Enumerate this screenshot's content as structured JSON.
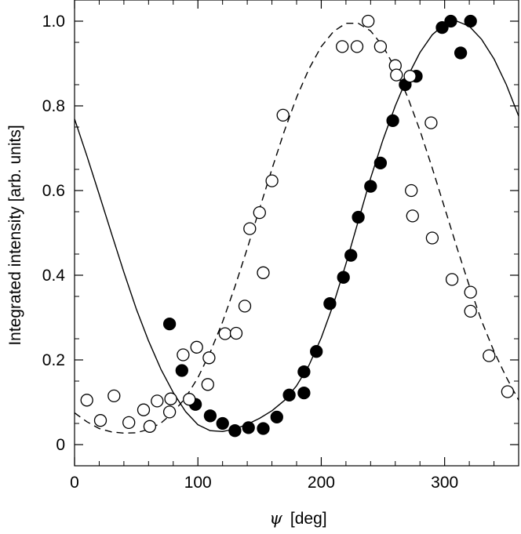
{
  "chart_data": {
    "type": "scatter",
    "title": "",
    "xlabel_symbol": "ψ",
    "xlabel_unit": "[deg]",
    "ylabel": "Integrated intensity [arb. units]",
    "xlim": [
      0,
      360
    ],
    "ylim": [
      -0.05,
      1.05
    ],
    "xticks": [
      0,
      100,
      200,
      300
    ],
    "xtick_labels": [
      "0",
      "100",
      "200",
      "300"
    ],
    "yticks": [
      0,
      0.2,
      0.4,
      0.6,
      0.8,
      1.0
    ],
    "ytick_labels": [
      "0",
      "0.2",
      "0.4",
      "0.6",
      "0.8",
      "1.0"
    ],
    "grid": false,
    "legend": "none",
    "series": [
      {
        "marker": "filled-circle",
        "points": [
          [
            77,
            0.285
          ],
          [
            87,
            0.175
          ],
          [
            98,
            0.095
          ],
          [
            110,
            0.068
          ],
          [
            120,
            0.05
          ],
          [
            130,
            0.033
          ],
          [
            141,
            0.04
          ],
          [
            153,
            0.038
          ],
          [
            164,
            0.065
          ],
          [
            174,
            0.117
          ],
          [
            186,
            0.122
          ],
          [
            186,
            0.172
          ],
          [
            196,
            0.22
          ],
          [
            207,
            0.333
          ],
          [
            218,
            0.395
          ],
          [
            224,
            0.447
          ],
          [
            230,
            0.537
          ],
          [
            240,
            0.61
          ],
          [
            248,
            0.665
          ],
          [
            258,
            0.765
          ],
          [
            268,
            0.85
          ],
          [
            277,
            0.87
          ],
          [
            298,
            0.985
          ],
          [
            305,
            1.0
          ],
          [
            313,
            0.925
          ],
          [
            321,
            1.0
          ]
        ]
      },
      {
        "marker": "open-circle",
        "points": [
          [
            10,
            0.105
          ],
          [
            21,
            0.057
          ],
          [
            32,
            0.115
          ],
          [
            44,
            0.052
          ],
          [
            56,
            0.082
          ],
          [
            61,
            0.043
          ],
          [
            67,
            0.103
          ],
          [
            77,
            0.077
          ],
          [
            78,
            0.108
          ],
          [
            88,
            0.212
          ],
          [
            93,
            0.107
          ],
          [
            99,
            0.23
          ],
          [
            108,
            0.142
          ],
          [
            109,
            0.205
          ],
          [
            122,
            0.262
          ],
          [
            131,
            0.263
          ],
          [
            138,
            0.327
          ],
          [
            142,
            0.51
          ],
          [
            150,
            0.548
          ],
          [
            153,
            0.406
          ],
          [
            160,
            0.623
          ],
          [
            169,
            0.778
          ],
          [
            217,
            0.94
          ],
          [
            229,
            0.94
          ],
          [
            238,
            1.0
          ],
          [
            248,
            0.94
          ],
          [
            260,
            0.895
          ],
          [
            261,
            0.873
          ],
          [
            272,
            0.87
          ],
          [
            273,
            0.6
          ],
          [
            274,
            0.54
          ],
          [
            289,
            0.76
          ],
          [
            290,
            0.488
          ],
          [
            306,
            0.39
          ],
          [
            321,
            0.36
          ],
          [
            321,
            0.315
          ],
          [
            336,
            0.21
          ],
          [
            351,
            0.125
          ]
        ]
      },
      {
        "style": "solid-line",
        "x": [
          0,
          10,
          20,
          30,
          40,
          50,
          60,
          70,
          80,
          90,
          100,
          110,
          120,
          130,
          140,
          150,
          160,
          170,
          180,
          190,
          200,
          210,
          220,
          230,
          240,
          250,
          260,
          270,
          280,
          290,
          300,
          310,
          320,
          330,
          340,
          350,
          360
        ],
        "y": [
          0.769,
          0.682,
          0.591,
          0.498,
          0.407,
          0.321,
          0.245,
          0.178,
          0.123,
          0.078,
          0.047,
          0.033,
          0.031,
          0.037,
          0.048,
          0.062,
          0.08,
          0.104,
          0.139,
          0.187,
          0.252,
          0.333,
          0.427,
          0.528,
          0.629,
          0.72,
          0.8,
          0.869,
          0.926,
          0.968,
          0.993,
          1.0,
          0.988,
          0.957,
          0.911,
          0.85,
          0.776
        ]
      },
      {
        "style": "dashed-line",
        "x": [
          0,
          10,
          20,
          30,
          40,
          50,
          60,
          70,
          80,
          90,
          100,
          110,
          120,
          130,
          140,
          150,
          160,
          170,
          180,
          190,
          200,
          210,
          220,
          230,
          240,
          250,
          260,
          270,
          280,
          290,
          300,
          310,
          320,
          330,
          340,
          350,
          360
        ],
        "y": [
          0.075,
          0.054,
          0.038,
          0.03,
          0.027,
          0.028,
          0.036,
          0.051,
          0.076,
          0.111,
          0.158,
          0.218,
          0.29,
          0.373,
          0.463,
          0.557,
          0.651,
          0.74,
          0.82,
          0.887,
          0.94,
          0.976,
          0.995,
          0.995,
          0.977,
          0.941,
          0.888,
          0.821,
          0.742,
          0.653,
          0.559,
          0.465,
          0.375,
          0.292,
          0.22,
          0.159,
          0.105
        ]
      }
    ]
  }
}
